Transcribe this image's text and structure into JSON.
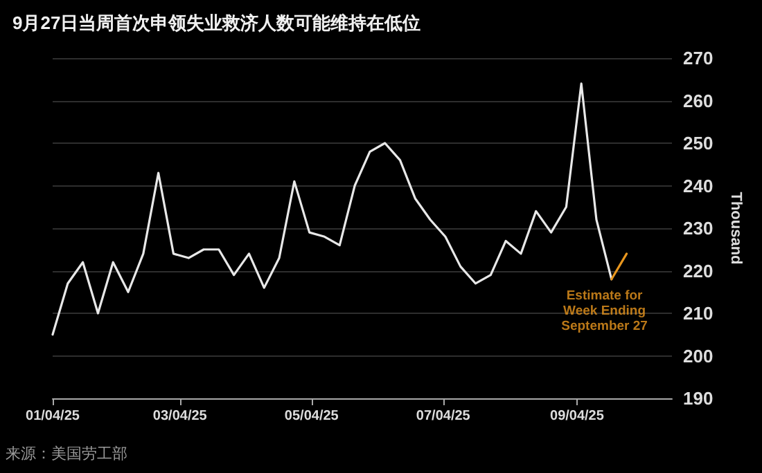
{
  "chart_data": {
    "type": "line",
    "title": "9月27日当周首次申领失业救济人数可能维持在低位",
    "ylabel": "Thousand",
    "x": [
      "2025-01-04",
      "2025-01-11",
      "2025-01-18",
      "2025-01-25",
      "2025-02-01",
      "2025-02-08",
      "2025-02-15",
      "2025-02-22",
      "2025-03-01",
      "2025-03-08",
      "2025-03-15",
      "2025-03-22",
      "2025-03-29",
      "2025-04-05",
      "2025-04-12",
      "2025-04-19",
      "2025-04-26",
      "2025-05-03",
      "2025-05-10",
      "2025-05-17",
      "2025-05-24",
      "2025-05-31",
      "2025-06-07",
      "2025-06-14",
      "2025-06-21",
      "2025-06-28",
      "2025-07-05",
      "2025-07-12",
      "2025-07-19",
      "2025-07-26",
      "2025-08-02",
      "2025-08-09",
      "2025-08-16",
      "2025-08-23",
      "2025-08-30",
      "2025-09-06",
      "2025-09-13",
      "2025-09-20"
    ],
    "series": [
      {
        "color": "#e8e8e8",
        "values": [
          205,
          217,
          222,
          210,
          222,
          215,
          224,
          243,
          224,
          223,
          225,
          225,
          219,
          224,
          216,
          223,
          241,
          229,
          228,
          226,
          240,
          248,
          250,
          246,
          237,
          232,
          228,
          221,
          217,
          219,
          227,
          224,
          234,
          229,
          235,
          264,
          232,
          218
        ]
      },
      {
        "color": "#e8961e",
        "x": [
          "2025-09-20",
          "2025-09-27"
        ],
        "values": [
          218,
          224
        ]
      }
    ],
    "xlim": [
      "2025-01-04",
      "2025-10-18"
    ],
    "xticks": [
      {
        "value": "2025-01-04",
        "label": "01/04/25"
      },
      {
        "value": "2025-03-04",
        "label": "03/04/25"
      },
      {
        "value": "2025-05-04",
        "label": "05/04/25"
      },
      {
        "value": "2025-07-04",
        "label": "07/04/25"
      },
      {
        "value": "2025-09-04",
        "label": "09/04/25"
      }
    ],
    "ylim": [
      190,
      270
    ],
    "yticks": [
      190,
      200,
      210,
      220,
      230,
      240,
      250,
      260,
      270
    ],
    "grid": "y",
    "marker": "none",
    "line_style": "solid",
    "annotations": [
      {
        "text": "Estimate for\nWeek Ending\nSeptember 27",
        "x": "2025-09-27",
        "y": 224
      },
      "来源：美国劳工部"
    ]
  }
}
